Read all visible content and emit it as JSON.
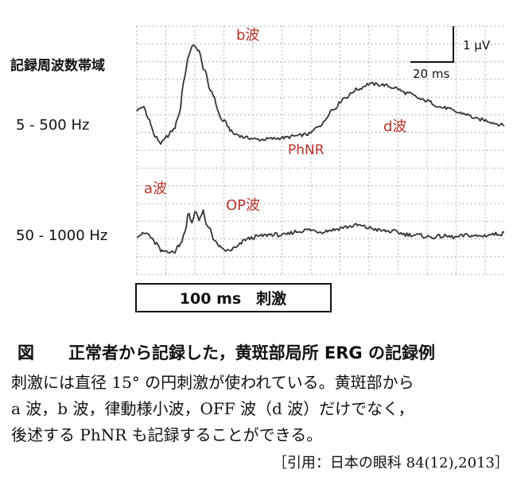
{
  "chart_data": {
    "type": "line",
    "y_axis_title": "記録周波数帯域",
    "series": [
      {
        "name": "5 - 500 Hz",
        "x": [
          0,
          5,
          10,
          15,
          20,
          22,
          25,
          30,
          35,
          38,
          42,
          45,
          50,
          55,
          60,
          70,
          80,
          90,
          100,
          110,
          120,
          130,
          140,
          150,
          160,
          170,
          180,
          190,
          200,
          210,
          220,
          235,
          250,
          265,
          280,
          300
        ],
        "y": [
          0.05,
          0.25,
          -0.45,
          -1.4,
          -1.75,
          -1.6,
          -1.35,
          -1.0,
          -0.1,
          1.6,
          2.9,
          3.6,
          3.4,
          2.3,
          1.15,
          -0.5,
          -1.25,
          -1.45,
          -1.55,
          -1.5,
          -1.45,
          -1.35,
          -1.25,
          -0.75,
          0.1,
          0.75,
          1.2,
          1.5,
          1.45,
          1.3,
          1.0,
          0.6,
          0.2,
          -0.1,
          -0.45,
          -0.75
        ]
      },
      {
        "name": "50 - 1000 Hz",
        "x": [
          0,
          8,
          16,
          20,
          25,
          30,
          35,
          40,
          42,
          45,
          48,
          51,
          54,
          57,
          60,
          63,
          66,
          70,
          75,
          80,
          90,
          100,
          110,
          120,
          130,
          140,
          150,
          160,
          170,
          180,
          190,
          200,
          210,
          220,
          230,
          240,
          250,
          260,
          270,
          280,
          290,
          300
        ],
        "y": [
          0.0,
          0.1,
          -0.45,
          -0.9,
          -0.85,
          -0.95,
          -0.5,
          0.3,
          1.2,
          0.7,
          1.4,
          0.8,
          1.3,
          0.5,
          0.4,
          -0.3,
          -0.5,
          -0.8,
          -0.85,
          -0.7,
          -0.2,
          -0.05,
          0.05,
          0.0,
          0.2,
          0.3,
          0.2,
          0.3,
          0.45,
          0.55,
          0.4,
          0.25,
          0.2,
          0.05,
          0.0,
          -0.1,
          -0.05,
          -0.1,
          0.0,
          -0.05,
          0.05,
          0.1
        ]
      }
    ],
    "annotations": [
      {
        "text": "b波",
        "x": 45,
        "y": 3.6,
        "series": 0
      },
      {
        "text": "a波",
        "x": 20,
        "y": -1.75,
        "series": 0
      },
      {
        "text": "PhNR",
        "x": 110,
        "y": -1.5,
        "series": 0
      },
      {
        "text": "d波",
        "x": 190,
        "y": 1.5,
        "series": 0
      },
      {
        "text": "OP波",
        "x": 51,
        "y": 1.3,
        "series": 1
      }
    ],
    "scale_bar": {
      "voltage_label": "1 µV",
      "time_label": "20 ms"
    },
    "stimulus_label": "100 ms　刺激",
    "grid": true
  },
  "caption": {
    "figure_label": "図",
    "title": "正常者から記録した，黄斑部局所 ERG の記録例",
    "body_lines": [
      "刺激には直径 15° の円刺激が使われている。黄斑部から",
      "a 波，b 波，律動様小波，OFF 波（d 波）だけでなく，",
      "後述する PhNR も記録することができる。"
    ],
    "citation": "［引用：日本の眼科 84(12),2013］"
  },
  "colors": {
    "trace": "#333333",
    "annotation": "#b8322a",
    "grid": "#9a9a9a"
  }
}
